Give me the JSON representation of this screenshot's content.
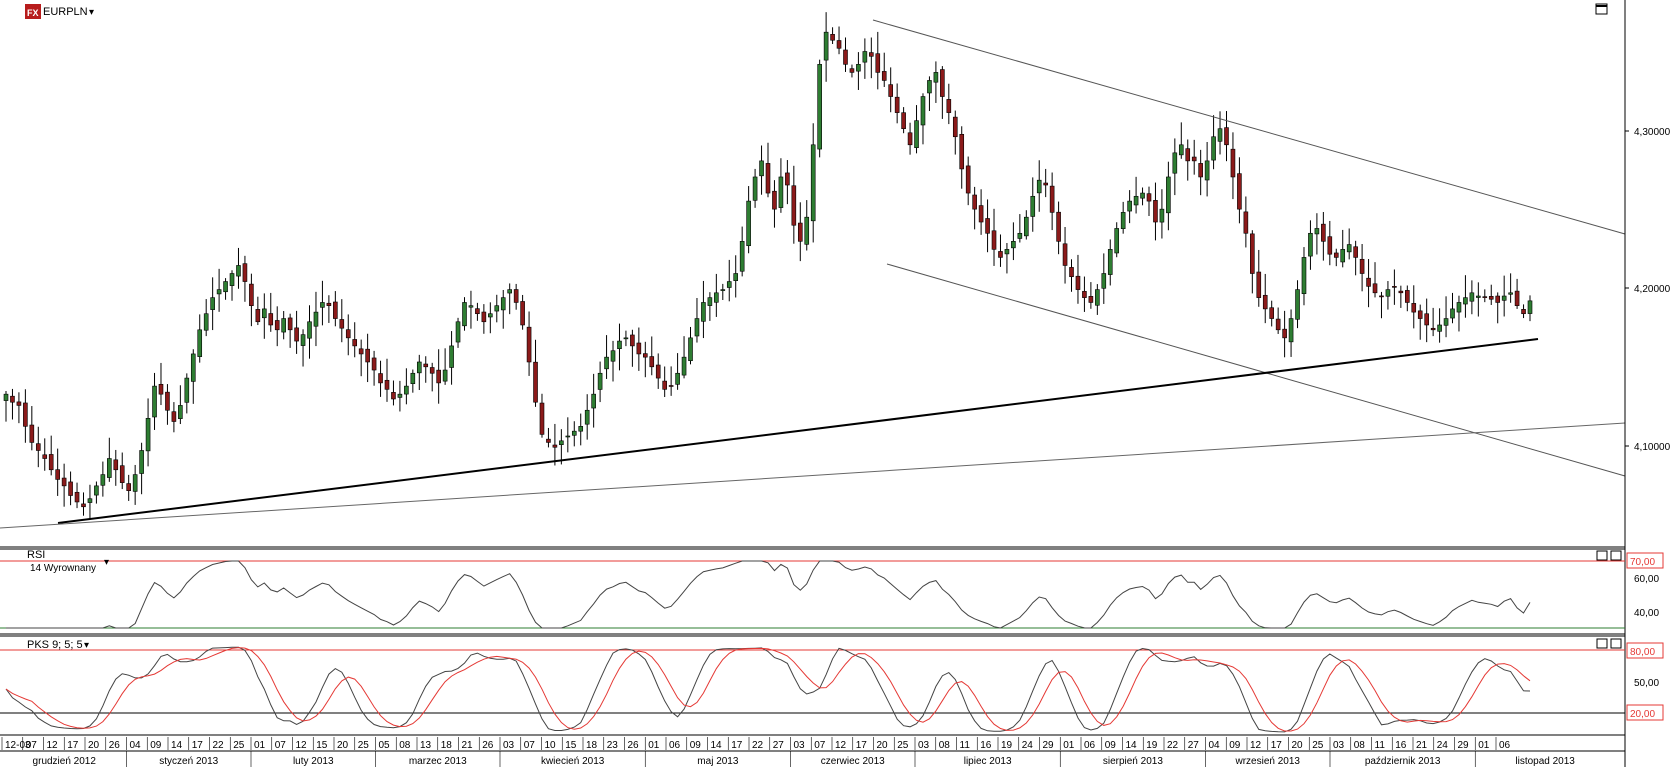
{
  "header": {
    "logo_text": "FX",
    "symbol": "EURPLN",
    "dropdown_glyph": "▾"
  },
  "colors": {
    "bull_body": "#2e7d32",
    "bear_body": "#8b1a1a",
    "wick": "#000000",
    "level_red": "#e53935",
    "level_green": "#2e7d32",
    "signal_red": "#e53935",
    "line_gray": "#444444"
  },
  "panels": {
    "rsi": {
      "title": "RSI",
      "subtitle": "14 Wyrownany",
      "levels": [
        "70,00",
        "60,00",
        "40,00"
      ]
    },
    "stoch": {
      "title": "PKS 9; 5; 5",
      "levels": [
        "80,00",
        "50,00",
        "20,00"
      ]
    }
  },
  "price_axis": {
    "labels": [
      "4,30000",
      "4,20000",
      "4,10000"
    ]
  },
  "icons": {
    "maximize": "maximize-icon"
  },
  "chart_data": {
    "type": "candlestick",
    "symbol": "EURPLN",
    "ylim": [
      4.03,
      4.37
    ],
    "price_ticks": [
      4.3,
      4.2,
      4.1
    ],
    "price_tick_labels": [
      "4,30000",
      "4,20000",
      "4,10000"
    ],
    "day_labels": [
      "12-03",
      "07",
      "12",
      "17",
      "20",
      "26",
      "04",
      "09",
      "14",
      "17",
      "22",
      "25",
      "01",
      "07",
      "12",
      "15",
      "20",
      "25",
      "05",
      "08",
      "13",
      "18",
      "21",
      "26",
      "03",
      "07",
      "10",
      "15",
      "18",
      "23",
      "26",
      "01",
      "06",
      "09",
      "14",
      "17",
      "22",
      "27",
      "03",
      "07",
      "12",
      "17",
      "20",
      "25",
      "03",
      "08",
      "11",
      "16",
      "19",
      "24",
      "29",
      "01",
      "06",
      "09",
      "14",
      "19",
      "22",
      "27",
      "04",
      "09",
      "12",
      "17",
      "20",
      "25",
      "03",
      "08",
      "11",
      "16",
      "21",
      "24",
      "29",
      "01",
      "06"
    ],
    "month_labels": [
      "grudzień 2012",
      "styczeń 2013",
      "luty 2013",
      "marzec 2013",
      "kwiecień 2013",
      "maj 2013",
      "czerwiec 2013",
      "lipiec 2013",
      "sierpień 2013",
      "wrzesień 2013",
      "październik 2013",
      "listopad 2013"
    ],
    "closes": [
      4.125,
      4.12,
      4.118,
      4.105,
      4.095,
      4.09,
      4.085,
      4.078,
      4.072,
      4.068,
      4.062,
      4.058,
      4.055,
      4.06,
      4.068,
      4.075,
      4.085,
      4.078,
      4.07,
      4.065,
      4.075,
      4.09,
      4.11,
      4.13,
      4.125,
      4.115,
      4.108,
      4.118,
      4.135,
      4.15,
      4.165,
      4.175,
      4.185,
      4.19,
      4.195,
      4.2,
      4.205,
      4.195,
      4.18,
      4.17,
      4.178,
      4.168,
      4.165,
      4.172,
      4.165,
      4.158,
      4.162,
      4.17,
      4.176,
      4.182,
      4.18,
      4.172,
      4.166,
      4.16,
      4.155,
      4.15,
      4.145,
      4.14,
      4.132,
      4.128,
      4.122,
      4.125,
      4.13,
      4.138,
      4.145,
      4.142,
      4.138,
      4.132,
      4.14,
      4.155,
      4.17,
      4.182,
      4.18,
      4.175,
      4.17,
      4.175,
      4.18,
      4.185,
      4.19,
      4.182,
      4.168,
      4.145,
      4.12,
      4.1,
      4.095,
      4.092,
      4.096,
      4.099,
      4.102,
      4.105,
      4.115,
      4.125,
      4.138,
      4.148,
      4.152,
      4.158,
      4.16,
      4.155,
      4.15,
      4.148,
      4.142,
      4.135,
      4.128,
      4.13,
      4.138,
      4.148,
      4.16,
      4.172,
      4.182,
      4.185,
      4.188,
      4.19,
      4.195,
      4.2,
      4.22,
      4.245,
      4.26,
      4.27,
      4.25,
      4.24,
      4.26,
      4.255,
      4.23,
      4.22,
      4.235,
      4.28,
      4.33,
      4.35,
      4.345,
      4.34,
      4.33,
      4.325,
      4.33,
      4.338,
      4.335,
      4.325,
      4.32,
      4.31,
      4.3,
      4.29,
      4.28,
      4.295,
      4.31,
      4.32,
      4.325,
      4.31,
      4.3,
      4.285,
      4.265,
      4.25,
      4.24,
      4.232,
      4.225,
      4.215,
      4.21,
      4.215,
      4.22,
      4.225,
      4.235,
      4.248,
      4.258,
      4.255,
      4.238,
      4.22,
      4.205,
      4.198,
      4.19,
      4.185,
      4.182,
      4.19,
      4.2,
      4.215,
      4.228,
      4.238,
      4.245,
      4.248,
      4.25,
      4.245,
      4.232,
      4.24,
      4.26,
      4.275,
      4.28,
      4.27,
      4.27,
      4.26,
      4.27,
      4.285,
      4.29,
      4.28,
      4.26,
      4.24,
      4.225,
      4.2,
      4.185,
      4.178,
      4.172,
      4.165,
      4.16,
      4.172,
      4.19,
      4.21,
      4.225,
      4.228,
      4.22,
      4.212,
      4.21,
      4.215,
      4.218,
      4.21,
      4.2,
      4.192,
      4.188,
      4.186,
      4.19,
      4.192,
      4.188,
      4.182,
      4.176,
      4.172,
      4.168,
      4.165,
      4.168,
      4.172,
      4.178,
      4.182,
      4.185,
      4.188,
      4.186,
      4.185,
      4.184,
      4.182,
      4.186,
      4.188,
      4.18,
      4.175,
      4.183
    ],
    "rsi": {
      "name": "RSI 14 Wyrownany",
      "ylim": [
        30,
        75
      ],
      "levels": [
        70,
        30
      ],
      "tick_labels": [
        "70,00",
        "60,00",
        "40,00"
      ]
    },
    "stochastic": {
      "name": "PKS 9; 5; 5",
      "ylim": [
        0,
        100
      ],
      "levels": [
        80,
        20
      ],
      "tick_labels": [
        "80,00",
        "50,00",
        "20,00"
      ]
    },
    "trendlines": [
      "upper channel line",
      "lower channel line",
      "rising support (thick)",
      "rising support (thin)"
    ]
  }
}
